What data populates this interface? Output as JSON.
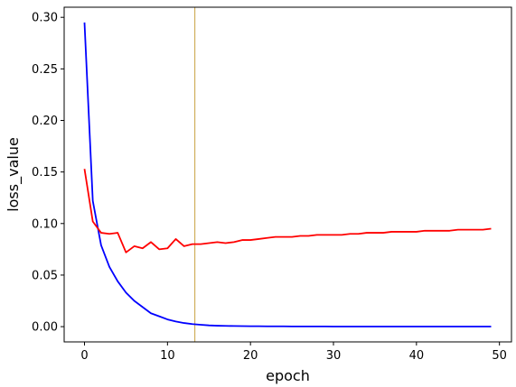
{
  "chart_data": {
    "type": "line",
    "title": "",
    "xlabel": "epoch",
    "ylabel": "loss_value",
    "xlim": [
      -2.45,
      51.45
    ],
    "ylim": [
      -0.0148,
      0.3098
    ],
    "xticks": [
      0,
      10,
      20,
      30,
      40,
      50
    ],
    "xtick_labels": [
      "0",
      "10",
      "20",
      "30",
      "40",
      "50"
    ],
    "yticks": [
      0.0,
      0.05,
      0.1,
      0.15,
      0.2,
      0.25,
      0.3
    ],
    "ytick_labels": [
      "0.00",
      "0.05",
      "0.10",
      "0.15",
      "0.20",
      "0.25",
      "0.30"
    ],
    "grid": false,
    "legend": "none",
    "vline": {
      "x": 13.3,
      "color": "#c8a040"
    },
    "x": [
      0,
      1,
      2,
      3,
      4,
      5,
      6,
      7,
      8,
      9,
      10,
      11,
      12,
      13,
      14,
      15,
      16,
      17,
      18,
      19,
      20,
      21,
      22,
      23,
      24,
      25,
      26,
      27,
      28,
      29,
      30,
      31,
      32,
      33,
      34,
      35,
      36,
      37,
      38,
      39,
      40,
      41,
      42,
      43,
      44,
      45,
      46,
      47,
      48,
      49
    ],
    "series": [
      {
        "color": "#0000ff",
        "values": [
          0.295,
          0.122,
          0.079,
          0.058,
          0.044,
          0.033,
          0.025,
          0.019,
          0.013,
          0.01,
          0.007,
          0.005,
          0.0035,
          0.0025,
          0.0018,
          0.0012,
          0.0009,
          0.0007,
          0.0006,
          0.0005,
          0.0004,
          0.0004,
          0.0003,
          0.0003,
          0.0003,
          0.0002,
          0.0002,
          0.0002,
          0.0002,
          0.0002,
          0.0001,
          0.0001,
          0.0001,
          0.0001,
          0.0001,
          0.0001,
          0.0001,
          0.0001,
          0.0001,
          0.0001,
          0.0001,
          0.0001,
          0.0001,
          0.0001,
          0.0001,
          0.0001,
          0.0001,
          0.0001,
          0.0001,
          0.0001
        ]
      },
      {
        "color": "#ff0000",
        "values": [
          0.153,
          0.102,
          0.091,
          0.09,
          0.091,
          0.072,
          0.078,
          0.076,
          0.082,
          0.075,
          0.076,
          0.085,
          0.078,
          0.08,
          0.08,
          0.081,
          0.082,
          0.081,
          0.082,
          0.084,
          0.084,
          0.085,
          0.086,
          0.087,
          0.087,
          0.087,
          0.088,
          0.088,
          0.089,
          0.089,
          0.089,
          0.089,
          0.09,
          0.09,
          0.091,
          0.091,
          0.091,
          0.092,
          0.092,
          0.092,
          0.092,
          0.093,
          0.093,
          0.093,
          0.093,
          0.094,
          0.094,
          0.094,
          0.094,
          0.095
        ]
      }
    ]
  }
}
